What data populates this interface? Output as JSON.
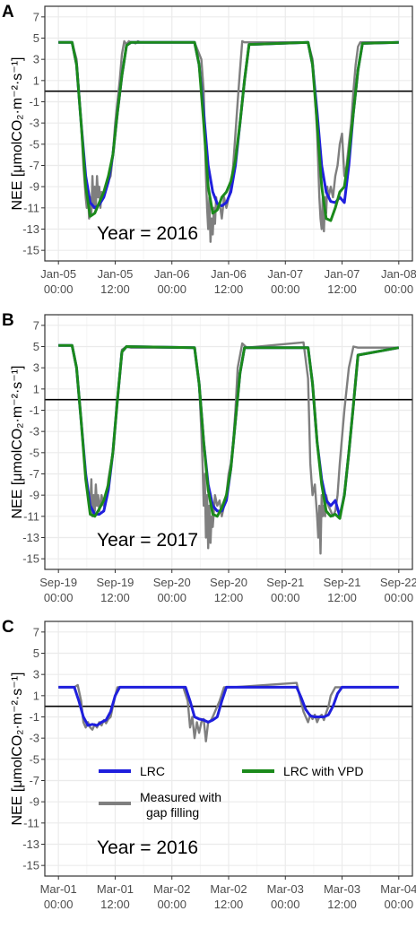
{
  "figure": {
    "colors": {
      "measured": "#7f7f7f",
      "lrc": "#1f1fdd",
      "lrc_vpd": "#1b8a1b",
      "grid_major": "#ebebeb",
      "grid_minor": "#f5f5f5",
      "panel_border": "#333333",
      "zero_line": "#000000"
    },
    "legend": {
      "lrc": "LRC",
      "lrc_vpd": "LRC with VPD",
      "measured_line1": "Measured with",
      "measured_line2": "gap filling"
    }
  },
  "chart_data": [
    {
      "type": "line",
      "panel": "A",
      "ylabel": "NEE [μmolCO₂·m⁻²·s⁻¹]",
      "annotation": "Year = 2016",
      "ylim": [
        -16,
        8
      ],
      "yticks": [
        7,
        5,
        3,
        1,
        -1,
        -3,
        -5,
        -7,
        -9,
        -11,
        -13,
        -15
      ],
      "xlim": [
        -0.12,
        3.12
      ],
      "xticks": [
        0,
        0.5,
        1,
        1.5,
        2,
        2.5,
        3
      ],
      "xtick_labels": [
        [
          "Jan-05",
          "00:00"
        ],
        [
          "Jan-05",
          "12:00"
        ],
        [
          "Jan-06",
          "00:00"
        ],
        [
          "Jan-06",
          "12:00"
        ],
        [
          "Jan-07",
          "00:00"
        ],
        [
          "Jan-07",
          "12:00"
        ],
        [
          "Jan-08",
          "00:00"
        ]
      ],
      "grid": true,
      "series": [
        {
          "name": "Measured with gap filling",
          "color": "#7f7f7f",
          "x": [
            0,
            0.12,
            0.16,
            0.18,
            0.2,
            0.22,
            0.24,
            0.25,
            0.26,
            0.27,
            0.28,
            0.29,
            0.3,
            0.31,
            0.32,
            0.33,
            0.34,
            0.35,
            0.36,
            0.37,
            0.38,
            0.4,
            0.42,
            0.44,
            0.46,
            0.48,
            0.5,
            0.52,
            0.54,
            0.56,
            0.58,
            0.6,
            0.62,
            0.64,
            0.66,
            0.68,
            0.7,
            0.72,
            0.74,
            0.76,
            1.2,
            1.26,
            1.28,
            1.29,
            1.3,
            1.31,
            1.32,
            1.33,
            1.34,
            1.35,
            1.36,
            1.37,
            1.38,
            1.39,
            1.4,
            1.42,
            1.44,
            1.46,
            1.48,
            1.5,
            1.52,
            1.54,
            1.56,
            1.58,
            1.6,
            1.62,
            1.64,
            1.66,
            1.68,
            1.7,
            1.72,
            1.74,
            1.76,
            2.2,
            2.24,
            2.26,
            2.28,
            2.29,
            2.3,
            2.31,
            2.32,
            2.33,
            2.34,
            2.35,
            2.36,
            2.37,
            2.38,
            2.4,
            2.42,
            2.44,
            2.46,
            2.48,
            2.5,
            2.52,
            2.54,
            2.56,
            2.58,
            2.6,
            2.62,
            2.64,
            2.66,
            2.68,
            2.7,
            2.72,
            3.0
          ],
          "y": [
            4.6,
            4.6,
            3,
            0,
            -3,
            -7,
            -10,
            -11,
            -9.5,
            -12,
            -10,
            -11.5,
            -8,
            -11,
            -9,
            -11,
            -8,
            -10,
            -9,
            -11,
            -9.5,
            -10,
            -9,
            -8.5,
            -8,
            -6,
            -3,
            -1,
            1,
            3.5,
            4.7,
            4.4,
            4.7,
            4.6,
            4.6,
            4.5,
            4.7,
            4.6,
            4.6,
            4.6,
            4.6,
            3,
            0,
            -4,
            -8,
            -11,
            -13,
            -10,
            -14.2,
            -12,
            -13.5,
            -11,
            -12.5,
            -10,
            -11,
            -10.5,
            -12,
            -10,
            -11,
            -10,
            -9,
            -7,
            -4,
            -1,
            2,
            4.7,
            4.6,
            4.6,
            4.6,
            4.6,
            4.6,
            4.6,
            4.6,
            4.6,
            3,
            0,
            -4,
            -7,
            -10,
            -12,
            -13,
            -10,
            -13.2,
            -10,
            -11.5,
            -9,
            -10,
            -9,
            -10,
            -8,
            -7,
            -5,
            -4,
            -8,
            -7,
            -5,
            -3,
            0,
            2.5,
            4.2,
            4.6,
            4.6,
            4.6,
            4.6,
            4.6
          ]
        },
        {
          "name": "LRC",
          "color": "#1f1fdd",
          "x": [
            0,
            0.12,
            0.16,
            0.2,
            0.24,
            0.28,
            0.32,
            0.36,
            0.4,
            0.44,
            0.48,
            0.52,
            0.56,
            0.6,
            0.64,
            1.2,
            1.24,
            1.28,
            1.32,
            1.36,
            1.4,
            1.44,
            1.48,
            1.52,
            1.56,
            1.6,
            1.64,
            1.68,
            2.2,
            2.24,
            2.28,
            2.32,
            2.36,
            2.4,
            2.44,
            2.48,
            2.52,
            2.56,
            2.6,
            2.64,
            2.68,
            3.0
          ],
          "y": [
            4.6,
            4.6,
            2.5,
            -3,
            -8,
            -10.5,
            -11,
            -10.7,
            -10,
            -8.5,
            -6,
            -2,
            1.5,
            4.3,
            4.6,
            4.6,
            2.5,
            -2,
            -7,
            -9.5,
            -10.6,
            -10.8,
            -10.5,
            -9.5,
            -7,
            -3,
            1,
            4.4,
            4.6,
            2.5,
            -2,
            -7,
            -9.5,
            -10.4,
            -10.5,
            -10,
            -10.5,
            -7,
            -2,
            2,
            4.5,
            4.6
          ]
        },
        {
          "name": "LRC with VPD",
          "color": "#1b8a1b",
          "x": [
            0,
            0.12,
            0.16,
            0.2,
            0.24,
            0.28,
            0.32,
            0.36,
            0.4,
            0.44,
            0.48,
            0.52,
            0.56,
            0.6,
            0.64,
            1.2,
            1.24,
            1.28,
            1.32,
            1.36,
            1.4,
            1.44,
            1.48,
            1.52,
            1.56,
            1.6,
            1.64,
            1.68,
            2.2,
            2.24,
            2.28,
            2.32,
            2.36,
            2.4,
            2.44,
            2.48,
            2.52,
            2.56,
            2.6,
            2.64,
            2.68,
            3.0
          ],
          "y": [
            4.6,
            4.6,
            2.5,
            -3,
            -9,
            -11.8,
            -11.5,
            -10.5,
            -9.5,
            -8,
            -6,
            -2,
            1.5,
            4.3,
            4.6,
            4.6,
            2.5,
            -3,
            -9,
            -11.5,
            -11.2,
            -10,
            -9.5,
            -8.5,
            -6.5,
            -3,
            1,
            4.4,
            4.6,
            2.5,
            -3,
            -9,
            -12,
            -12.2,
            -11,
            -9.5,
            -9,
            -6,
            -2,
            2,
            4.5,
            4.6
          ]
        }
      ]
    },
    {
      "type": "line",
      "panel": "B",
      "ylabel": "NEE [μmolCO₂·m⁻²·s⁻¹]",
      "annotation": "Year = 2017",
      "ylim": [
        -16,
        8
      ],
      "yticks": [
        7,
        5,
        3,
        1,
        -1,
        -3,
        -5,
        -7,
        -9,
        -11,
        -13,
        -15
      ],
      "xlim": [
        -0.12,
        3.12
      ],
      "xticks": [
        0,
        0.5,
        1,
        1.5,
        2,
        2.5,
        3
      ],
      "xtick_labels": [
        [
          "Sep-19",
          "00:00"
        ],
        [
          "Sep-19",
          "12:00"
        ],
        [
          "Sep-20",
          "00:00"
        ],
        [
          "Sep-20",
          "12:00"
        ],
        [
          "Sep-21",
          "00:00"
        ],
        [
          "Sep-21",
          "12:00"
        ],
        [
          "Sep-22",
          "00:00"
        ]
      ],
      "grid": true,
      "series": [
        {
          "name": "Measured with gap filling",
          "color": "#7f7f7f",
          "x": [
            0,
            0.12,
            0.16,
            0.2,
            0.24,
            0.26,
            0.28,
            0.29,
            0.3,
            0.31,
            0.32,
            0.33,
            0.34,
            0.35,
            0.36,
            0.38,
            0.4,
            0.42,
            0.44,
            0.48,
            0.52,
            0.56,
            0.6,
            0.64,
            1.2,
            1.24,
            1.26,
            1.27,
            1.28,
            1.29,
            1.3,
            1.31,
            1.32,
            1.33,
            1.34,
            1.35,
            1.36,
            1.38,
            1.4,
            1.42,
            1.44,
            1.46,
            1.48,
            1.5,
            1.52,
            1.54,
            1.56,
            1.58,
            1.62,
            1.66,
            2.16,
            2.2,
            2.22,
            2.24,
            2.26,
            2.28,
            2.29,
            2.3,
            2.31,
            2.32,
            2.33,
            2.34,
            2.35,
            2.36,
            2.38,
            2.4,
            2.42,
            2.44,
            2.46,
            2.48,
            2.52,
            2.56,
            2.6,
            2.64,
            3.0
          ],
          "y": [
            5.1,
            5.1,
            3,
            -2,
            -7,
            -9,
            -10,
            -7.5,
            -11,
            -9,
            -10.5,
            -8,
            -10,
            -9,
            -10.5,
            -9,
            -10,
            -9.5,
            -7.5,
            -5,
            0,
            4.7,
            5,
            4.9,
            4.9,
            1.5,
            -3,
            -6,
            -10,
            -7,
            -13,
            -9,
            -14,
            -10,
            -13.5,
            -11,
            -12,
            -9,
            -10,
            -9.5,
            -11,
            -10,
            -9,
            -7,
            -6,
            -4,
            -1,
            3,
            5.3,
            4.9,
            5.4,
            2,
            -6,
            -9,
            -8,
            -11,
            -13,
            -10,
            -14.5,
            -9,
            -11,
            -10,
            -11,
            -9,
            -10,
            -10.5,
            -11,
            -10.5,
            -9,
            -6,
            -1,
            3,
            5,
            4.9,
            4.9
          ]
        },
        {
          "name": "LRC",
          "color": "#1f1fdd",
          "x": [
            0,
            0.12,
            0.16,
            0.2,
            0.24,
            0.28,
            0.32,
            0.36,
            0.4,
            0.44,
            0.48,
            0.52,
            0.56,
            0.6,
            1.2,
            1.24,
            1.28,
            1.32,
            1.36,
            1.4,
            1.44,
            1.48,
            1.52,
            1.56,
            1.6,
            1.64,
            2.2,
            2.24,
            2.28,
            2.32,
            2.36,
            2.4,
            2.44,
            2.48,
            2.52,
            2.56,
            2.6,
            2.64,
            3.0
          ],
          "y": [
            5.1,
            5.1,
            3,
            -2,
            -7,
            -10,
            -10.8,
            -10.8,
            -10.5,
            -8.5,
            -5,
            0,
            4.5,
            5,
            4.9,
            1.5,
            -4,
            -8,
            -10,
            -10.5,
            -10.5,
            -9.5,
            -6.5,
            -2,
            2.5,
            4.9,
            4.9,
            1.5,
            -4,
            -7.5,
            -9.5,
            -10,
            -9.5,
            -11,
            -9,
            -5,
            -0.5,
            4.2,
            4.9
          ]
        },
        {
          "name": "LRC with VPD",
          "color": "#1b8a1b",
          "x": [
            0,
            0.12,
            0.16,
            0.2,
            0.24,
            0.28,
            0.32,
            0.36,
            0.4,
            0.44,
            0.48,
            0.52,
            0.56,
            0.6,
            1.2,
            1.24,
            1.28,
            1.32,
            1.36,
            1.4,
            1.44,
            1.48,
            1.52,
            1.56,
            1.6,
            1.64,
            2.2,
            2.24,
            2.28,
            2.32,
            2.36,
            2.4,
            2.44,
            2.48,
            2.52,
            2.56,
            2.6,
            2.64,
            3.0
          ],
          "y": [
            5.1,
            5.1,
            3,
            -2,
            -7.5,
            -10.8,
            -11,
            -10.3,
            -9.5,
            -8,
            -5,
            0,
            4.5,
            5,
            4.9,
            1.5,
            -4,
            -8.5,
            -10.8,
            -11,
            -10.2,
            -9,
            -6.5,
            -2,
            2.5,
            4.9,
            4.9,
            1.5,
            -4,
            -8,
            -10.5,
            -11,
            -10.8,
            -11.2,
            -9,
            -5,
            -0.5,
            4.2,
            4.9
          ]
        }
      ]
    },
    {
      "type": "line",
      "panel": "C",
      "ylabel": "NEE [μmolCO₂·m⁻²·s⁻¹]",
      "annotation": "Year = 2016",
      "ylim": [
        -16,
        8
      ],
      "yticks": [
        7,
        5,
        3,
        1,
        -1,
        -3,
        -5,
        -7,
        -9,
        -11,
        -13,
        -15
      ],
      "xlim": [
        -0.12,
        3.12
      ],
      "xticks": [
        0,
        0.5,
        1,
        1.5,
        2,
        2.5,
        3
      ],
      "xtick_labels": [
        [
          "Mar-01",
          "00:00"
        ],
        [
          "Mar-01",
          "12:00"
        ],
        [
          "Mar-02",
          "00:00"
        ],
        [
          "Mar-02",
          "12:00"
        ],
        [
          "Mar-03",
          "00:00"
        ],
        [
          "Mar-03",
          "12:00"
        ],
        [
          "Mar-04",
          "00:00"
        ]
      ],
      "grid": true,
      "series": [
        {
          "name": "Measured with gap filling",
          "color": "#7f7f7f",
          "x": [
            0,
            0.14,
            0.17,
            0.2,
            0.22,
            0.24,
            0.26,
            0.28,
            0.3,
            0.32,
            0.34,
            0.36,
            0.38,
            0.4,
            0.42,
            0.44,
            0.46,
            0.48,
            0.5,
            0.52,
            0.56,
            0.6,
            1.06,
            1.1,
            1.14,
            1.16,
            1.18,
            1.2,
            1.22,
            1.24,
            1.26,
            1.28,
            1.3,
            1.32,
            1.34,
            1.36,
            1.38,
            1.42,
            1.46,
            1.5,
            1.54,
            2.1,
            2.12,
            2.16,
            2.2,
            2.22,
            2.24,
            2.26,
            2.28,
            2.3,
            2.32,
            2.34,
            2.36,
            2.38,
            2.4,
            2.44,
            2.48,
            2.52,
            3.0
          ],
          "y": [
            1.8,
            1.8,
            2,
            0.5,
            -1.5,
            -2,
            -1.5,
            -2,
            -2.2,
            -1.7,
            -2,
            -1.5,
            -1.8,
            -1.3,
            -1.6,
            -1.2,
            -1,
            0,
            1,
            1.8,
            1.8,
            1.8,
            1.8,
            1.8,
            0.5,
            -2,
            -1,
            -3,
            -1.5,
            -2.5,
            -1.5,
            -1.2,
            -3.3,
            -1.5,
            -1.4,
            -1,
            -0.5,
            0.5,
            1.8,
            1.8,
            1.8,
            2.2,
            1.2,
            -0.5,
            -1.5,
            -0.8,
            -1.2,
            -0.8,
            -1.5,
            -1,
            -0.8,
            -1.3,
            -0.6,
            0,
            1,
            1.8,
            1.8,
            1.8,
            1.8
          ]
        },
        {
          "name": "LRC",
          "color": "#1f1fdd",
          "x": [
            0,
            0.14,
            0.18,
            0.22,
            0.26,
            0.3,
            0.34,
            0.38,
            0.42,
            0.46,
            0.5,
            0.54,
            1.08,
            1.12,
            1.16,
            1.2,
            1.24,
            1.28,
            1.32,
            1.36,
            1.4,
            1.44,
            1.48,
            2.1,
            2.14,
            2.18,
            2.22,
            2.26,
            2.3,
            2.34,
            2.38,
            2.42,
            2.46,
            2.5,
            3.0
          ],
          "y": [
            1.8,
            1.8,
            0.5,
            -1,
            -1.8,
            -1.7,
            -1.8,
            -1.5,
            -1.3,
            -0.5,
            1,
            1.8,
            1.8,
            1.8,
            0.5,
            -1,
            -1.2,
            -1.3,
            -1.5,
            -1.3,
            -1,
            0.5,
            1.8,
            1.8,
            0.8,
            -0.3,
            -0.9,
            -1,
            -1,
            -1,
            -0.8,
            0,
            1.2,
            1.8,
            1.8
          ]
        },
        {
          "name": "LRC with VPD",
          "color": "#1b8a1b",
          "x": [],
          "y": []
        }
      ]
    }
  ]
}
